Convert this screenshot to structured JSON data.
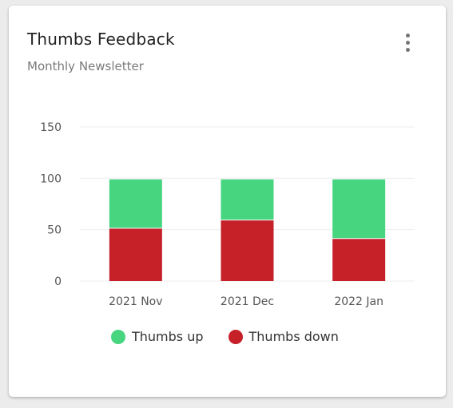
{
  "card": {
    "title": "Thumbs Feedback",
    "subtitle": "Monthly Newsletter",
    "menu_icon": "more-vertical-icon"
  },
  "colors": {
    "thumbs_up": "#47d580",
    "thumbs_down": "#c62029",
    "grid": "#eeeeee",
    "axis_text": "#555555"
  },
  "chart_data": {
    "type": "bar",
    "stacked": true,
    "categories": [
      "2021 Nov",
      "2021 Dec",
      "2022 Jan"
    ],
    "series": [
      {
        "name": "Thumbs down",
        "values": [
          51,
          59,
          41
        ]
      },
      {
        "name": "Thumbs up",
        "values": [
          48,
          40,
          58
        ]
      }
    ],
    "title": "",
    "xlabel": "",
    "ylabel": "",
    "ylim": [
      0,
      150
    ],
    "yticks": [
      0,
      50,
      100,
      150
    ],
    "grid": true,
    "legend_position": "bottom"
  },
  "legend": [
    {
      "label": "Thumbs up",
      "color": "#47d580"
    },
    {
      "label": "Thumbs down",
      "color": "#c62029"
    }
  ]
}
